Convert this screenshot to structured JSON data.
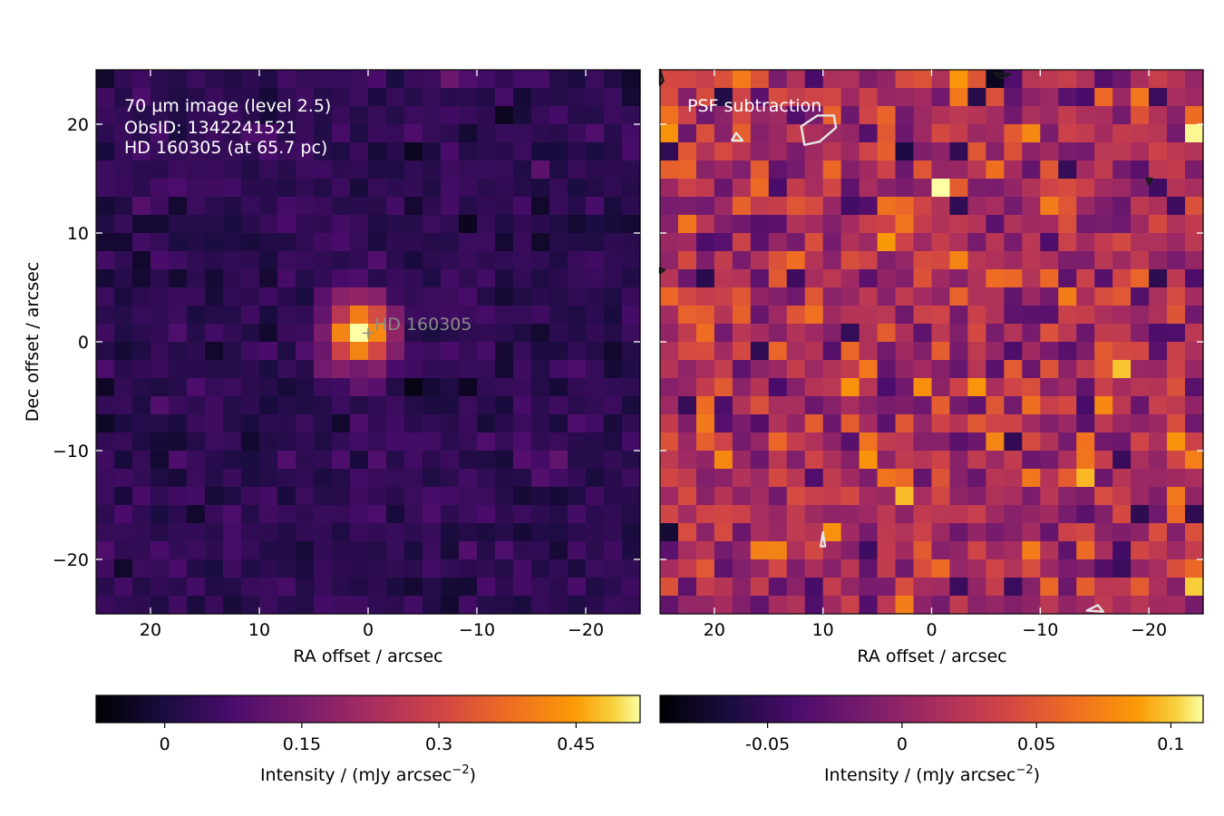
{
  "chart_data": [
    {
      "type": "heatmap",
      "panel": "left",
      "annotation_lines": [
        "70 µm image (level 2.5)",
        "ObsID: 1342241521",
        "HD 160305 (at 65.7 pc)"
      ],
      "source_label": "HD 160305",
      "source_marker": {
        "x": 0,
        "y": 0.8,
        "symbol": "+"
      },
      "xlabel": "RA offset / arcsec",
      "ylabel": "Dec offset / arcsec",
      "xlim": [
        25,
        -25
      ],
      "ylim": [
        -25,
        25
      ],
      "x_ticks": [
        20,
        10,
        0,
        -10,
        -20
      ],
      "x_tick_labels": [
        "20",
        "10",
        "0",
        "−10",
        "−20"
      ],
      "y_ticks": [
        20,
        10,
        0,
        -10,
        -20
      ],
      "y_tick_labels": [
        "20",
        "10",
        "0",
        "−10",
        "−20"
      ],
      "colormap": "inferno",
      "grid": {
        "nx": 30,
        "ny": 30,
        "cell_arcsec": 1.667
      },
      "peak": {
        "x": 0.8,
        "y": 0.8,
        "value": 0.52
      },
      "background_level": 0.03,
      "background_scatter": 0.025,
      "colorbar": {
        "range": [
          -0.075,
          0.52
        ],
        "ticks": [
          0,
          0.15,
          0.3,
          0.45
        ],
        "tick_labels": [
          "0",
          "0.15",
          "0.3",
          "0.45"
        ],
        "label": "Intensity / (mJy arcsec",
        "label_sup": "−2",
        "label_end": ")"
      }
    },
    {
      "type": "heatmap",
      "panel": "right",
      "annotation_lines": [
        "PSF subtraction"
      ],
      "xlabel": "RA offset / arcsec",
      "xlim": [
        25,
        -25
      ],
      "ylim": [
        -25,
        25
      ],
      "x_ticks": [
        20,
        10,
        0,
        -10,
        -20
      ],
      "x_tick_labels": [
        "20",
        "10",
        "0",
        "−10",
        "−20"
      ],
      "colormap": "inferno",
      "grid": {
        "nx": 30,
        "ny": 30,
        "cell_arcsec": 1.667
      },
      "residual_mean": 0.015,
      "residual_scatter": 0.03,
      "contours": [
        {
          "color": "#e6e6e6",
          "points": [
            [
              12,
              19.8
            ],
            [
              10.5,
              20.8
            ],
            [
              9,
              20.8
            ],
            [
              8.8,
              19.7
            ],
            [
              10.3,
              18.4
            ],
            [
              11.7,
              18.1
            ]
          ]
        },
        {
          "color": "#e6e6e6",
          "points": [
            [
              18.4,
              18.5
            ],
            [
              17.4,
              18.5
            ],
            [
              18,
              19.2
            ]
          ]
        },
        {
          "color": "#e6e6e6",
          "points": [
            [
              10,
              -17.5
            ],
            [
              10.2,
              -18.8
            ],
            [
              9.8,
              -18.8
            ]
          ]
        },
        {
          "color": "#e6e6e6",
          "points": [
            [
              -14.3,
              -24.7
            ],
            [
              -15.3,
              -24.2
            ],
            [
              -15.8,
              -24.8
            ]
          ]
        },
        {
          "color": "#1a1a1a",
          "points": [
            [
              -5.8,
              24.7
            ],
            [
              -6.4,
              24.2
            ],
            [
              -7.2,
              24.6
            ]
          ]
        },
        {
          "color": "#1a1a1a",
          "points": [
            [
              -19.8,
              15
            ],
            [
              -20,
              14.5
            ],
            [
              -20.3,
              15
            ]
          ]
        },
        {
          "color": "#1a1a1a",
          "points": [
            [
              25,
              6.8
            ],
            [
              24.6,
              6.6
            ],
            [
              25,
              6.3
            ]
          ]
        },
        {
          "color": "#1a1a1a",
          "points": [
            [
              25,
              25
            ],
            [
              24.7,
              24
            ],
            [
              25,
              23.6
            ]
          ]
        }
      ],
      "colorbar": {
        "range": [
          -0.09,
          0.112
        ],
        "ticks": [
          -0.05,
          0,
          0.05,
          0.1
        ],
        "tick_labels": [
          "-0.05",
          "0",
          "0.05",
          "0.1"
        ],
        "label": "Intensity / (mJy arcsec",
        "label_sup": "−2",
        "label_end": ")"
      }
    }
  ]
}
